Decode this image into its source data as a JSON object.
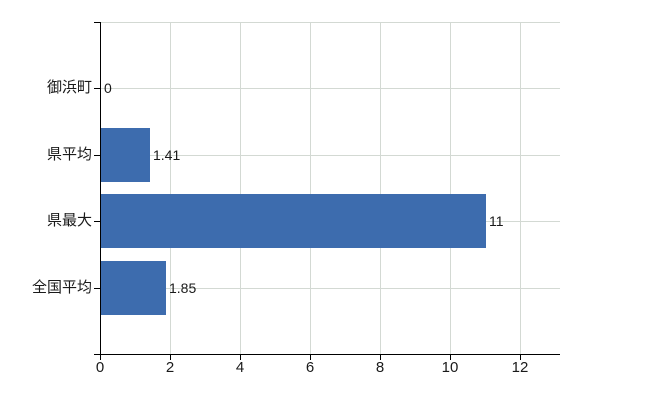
{
  "chart_data": {
    "type": "bar",
    "orientation": "horizontal",
    "title": "",
    "categories": [
      "御浜町",
      "県平均",
      "県最大",
      "全国平均"
    ],
    "values": [
      0,
      1.41,
      11,
      1.85
    ],
    "value_labels": [
      "0",
      "1.41",
      "11",
      "1.85"
    ],
    "x_ticks": [
      0,
      2,
      4,
      6,
      8,
      10,
      12
    ],
    "xlim": [
      0,
      13.14
    ],
    "grid": true,
    "legend": false,
    "colors": {
      "bar": "#3d6cae",
      "grid": "#d3d9d3",
      "axis": "#000000",
      "text": "#1a1a1a",
      "background": "#ffffff"
    }
  }
}
